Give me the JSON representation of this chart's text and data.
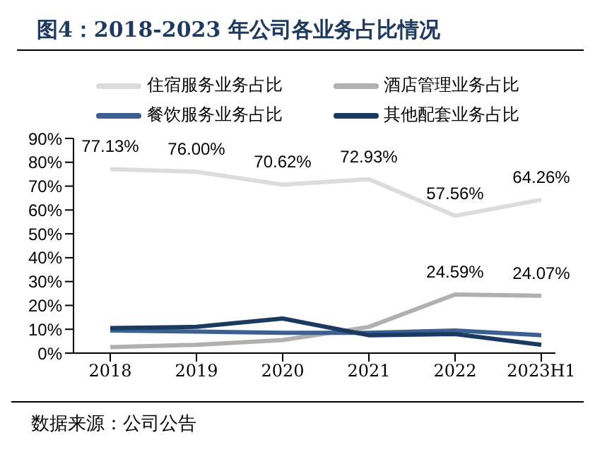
{
  "chart_data": {
    "type": "line",
    "title": "图4：2018-2023 年公司各业务占比情况",
    "categories": [
      "2018",
      "2019",
      "2020",
      "2021",
      "2022",
      "2023H1"
    ],
    "series": [
      {
        "name": "住宿服务业务占比",
        "color": "#dcdcdc",
        "values": [
          77.13,
          76.0,
          70.62,
          72.93,
          57.56,
          64.26
        ],
        "value_labels": [
          "77.13%",
          "76.00%",
          "70.62%",
          "72.93%",
          "57.56%",
          "64.26%"
        ]
      },
      {
        "name": "酒店管理业务占比",
        "color": "#b0b0b0",
        "values": [
          2.5,
          3.5,
          5.5,
          11,
          24.59,
          24.07
        ],
        "value_labels": [
          null,
          null,
          null,
          null,
          "24.59%",
          "24.07%"
        ]
      },
      {
        "name": "餐饮服务业务占比",
        "color": "#3d5f91",
        "values": [
          9.5,
          9,
          8.5,
          8.5,
          9.5,
          7.5
        ]
      },
      {
        "name": "其他配套业务占比",
        "color": "#1b3a62",
        "values": [
          10.5,
          11,
          14.5,
          7.5,
          8,
          3.5
        ]
      }
    ],
    "ylim": [
      0,
      90
    ],
    "yticks": [
      {
        "value": 0,
        "label": "0%"
      },
      {
        "value": 10,
        "label": "10%"
      },
      {
        "value": 20,
        "label": "20%"
      },
      {
        "value": 30,
        "label": "30%"
      },
      {
        "value": 40,
        "label": "40%"
      },
      {
        "value": 50,
        "label": "50%"
      },
      {
        "value": 60,
        "label": "60%"
      },
      {
        "value": 70,
        "label": "70%"
      },
      {
        "value": 80,
        "label": "80%"
      },
      {
        "value": 90,
        "label": "90%"
      }
    ],
    "grid": false,
    "legend": "top",
    "marker": "none",
    "line_style": "solid",
    "annotations": [
      "数据来源：公司公告"
    ]
  }
}
